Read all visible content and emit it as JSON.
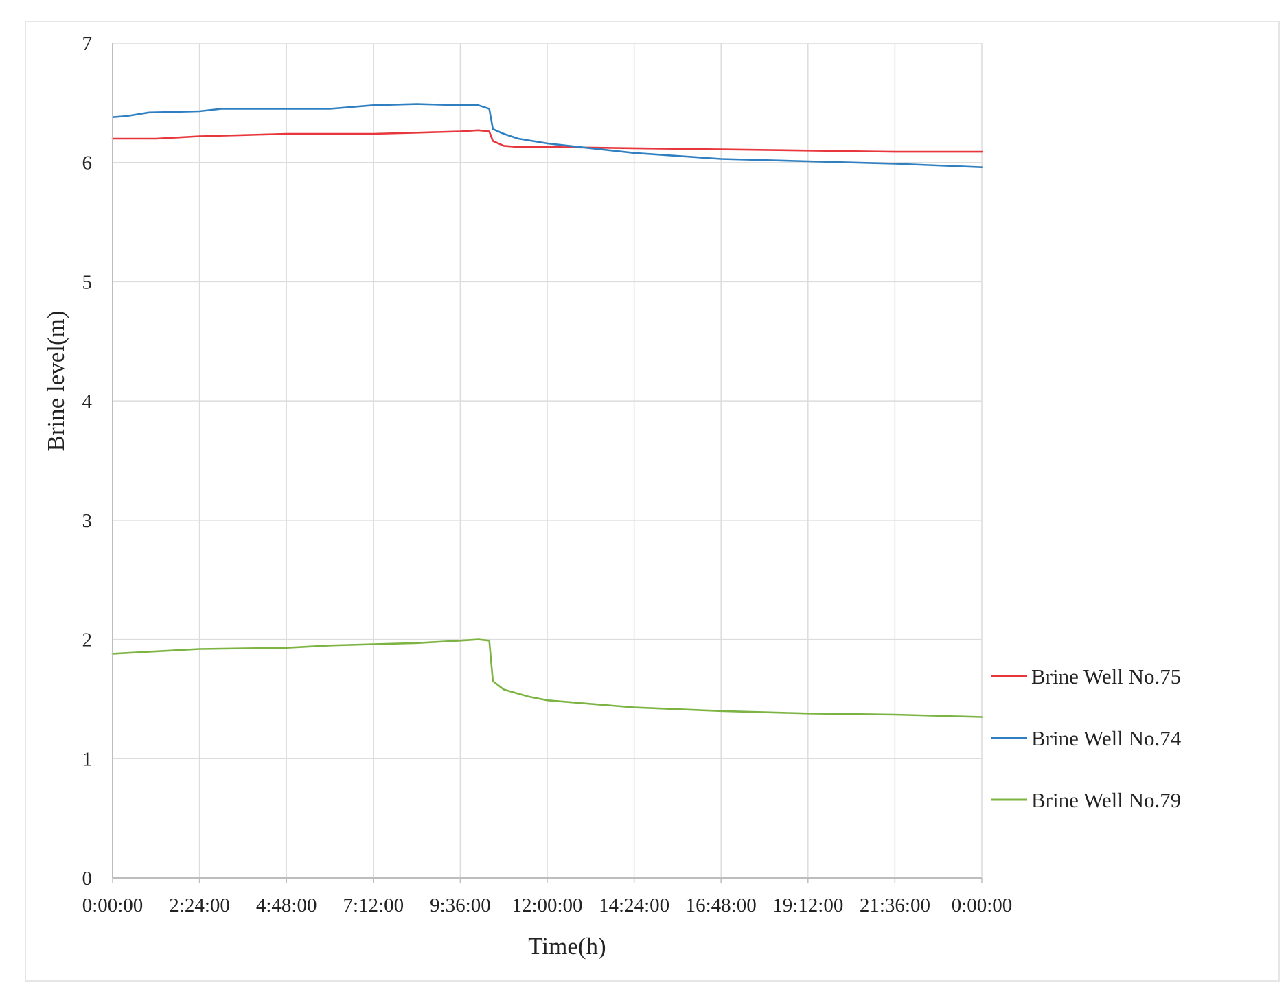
{
  "chart_data": {
    "type": "line",
    "title": "",
    "xlabel": "Time(h)",
    "ylabel": "Brine level(m)",
    "ylim": [
      0,
      7
    ],
    "yticks": [
      "0",
      "1",
      "2",
      "3",
      "4",
      "5",
      "6",
      "7"
    ],
    "xlim_hours": [
      0,
      24
    ],
    "xticks": [
      "0:00:00",
      "2:24:00",
      "4:48:00",
      "7:12:00",
      "9:36:00",
      "12:00:00",
      "14:24:00",
      "16:48:00",
      "19:12:00",
      "21:36:00",
      "0:00:00"
    ],
    "grid": true,
    "legend_position": "right",
    "series": [
      {
        "name": "Brine Well No.75",
        "color": "#e8373c",
        "x_hours": [
          0,
          1.2,
          2.4,
          3.6,
          4.8,
          6.0,
          7.2,
          8.4,
          9.6,
          10.1,
          10.4,
          10.5,
          10.8,
          11.2,
          12.0,
          14.4,
          16.8,
          19.2,
          21.6,
          24.0
        ],
        "values": [
          6.2,
          6.2,
          6.22,
          6.23,
          6.24,
          6.24,
          6.24,
          6.25,
          6.26,
          6.27,
          6.26,
          6.18,
          6.14,
          6.13,
          6.13,
          6.12,
          6.11,
          6.1,
          6.09,
          6.09
        ]
      },
      {
        "name": "Brine Well No.74",
        "color": "#2f7fc1",
        "x_hours": [
          0,
          0.4,
          1.0,
          2.4,
          3.0,
          4.8,
          6.0,
          7.2,
          8.4,
          9.6,
          10.1,
          10.4,
          10.5,
          10.8,
          11.2,
          12.0,
          13.2,
          14.4,
          16.8,
          19.2,
          21.6,
          24.0
        ],
        "values": [
          6.38,
          6.39,
          6.42,
          6.43,
          6.45,
          6.45,
          6.45,
          6.48,
          6.49,
          6.48,
          6.48,
          6.45,
          6.28,
          6.24,
          6.2,
          6.16,
          6.12,
          6.08,
          6.03,
          6.01,
          5.99,
          5.96
        ]
      },
      {
        "name": "Brine Well No.79",
        "color": "#7cb342",
        "x_hours": [
          0,
          1.2,
          2.4,
          4.8,
          6.0,
          7.2,
          8.4,
          9.6,
          10.1,
          10.4,
          10.5,
          10.8,
          11.5,
          12.0,
          13.2,
          14.4,
          16.8,
          19.2,
          21.6,
          24.0
        ],
        "values": [
          1.88,
          1.9,
          1.92,
          1.93,
          1.95,
          1.96,
          1.97,
          1.99,
          2.0,
          1.99,
          1.65,
          1.58,
          1.52,
          1.49,
          1.46,
          1.43,
          1.4,
          1.38,
          1.37,
          1.35
        ]
      }
    ]
  }
}
